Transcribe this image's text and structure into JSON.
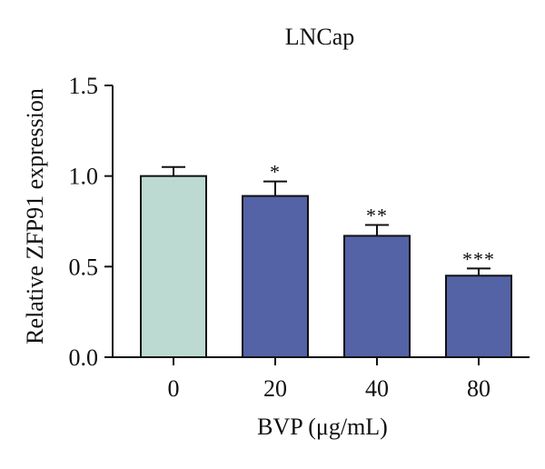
{
  "chart_data": {
    "type": "bar",
    "title": "LNCap",
    "xlabel": "BVP (μg/mL)",
    "ylabel": "Relative ZFP91 expression",
    "ylim": [
      0,
      1.5
    ],
    "yticks": [
      "0.0",
      "0.5",
      "1.0",
      "1.5"
    ],
    "categories": [
      "0",
      "20",
      "40",
      "80"
    ],
    "values": [
      1.0,
      0.89,
      0.67,
      0.45
    ],
    "errors": [
      0.05,
      0.08,
      0.06,
      0.04
    ],
    "significance": [
      "",
      "*",
      "**",
      "***"
    ],
    "colors": [
      "#bcdad2",
      "#5462a6",
      "#5462a6",
      "#5462a6"
    ],
    "grid": false,
    "legend": "none"
  }
}
